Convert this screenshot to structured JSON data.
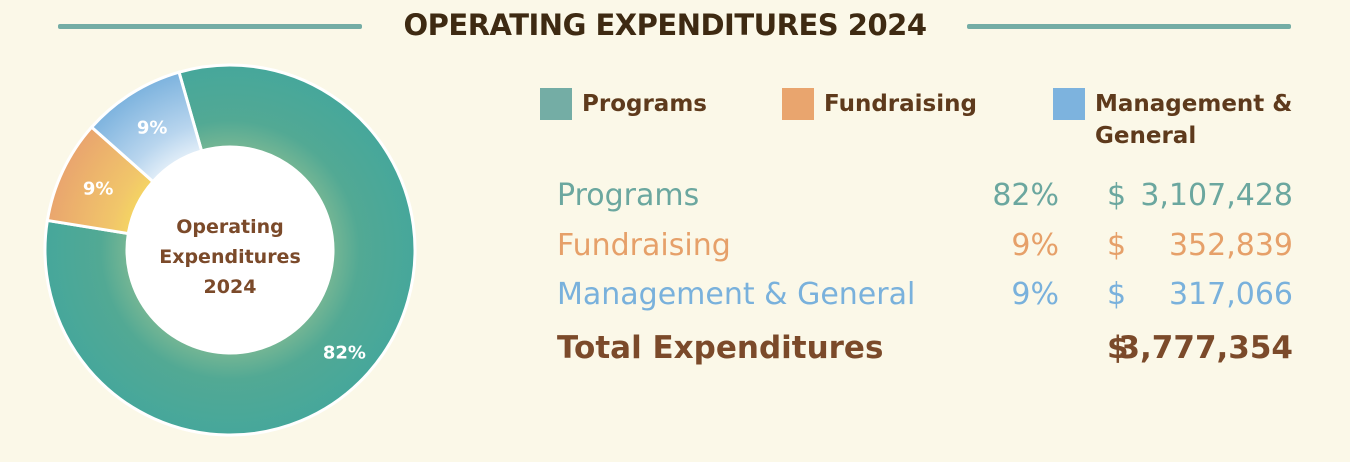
{
  "title": "OPERATING EXPENDITURES 2024",
  "center_label": [
    "Operating",
    "Expenditures",
    "2024"
  ],
  "legend": [
    {
      "label_lines": [
        "Programs"
      ],
      "color": "#74ADA5"
    },
    {
      "label_lines": [
        "Fundraising"
      ],
      "color": "#E9A56E"
    },
    {
      "label_lines": [
        "Management &",
        "General"
      ],
      "color": "#7DB3DE"
    }
  ],
  "table": {
    "rows": [
      {
        "name": "Programs",
        "pct": "82%",
        "currency": "$",
        "amount": "3,107,428",
        "color": "#6BA79F"
      },
      {
        "name": "Fundraising",
        "pct": "9%",
        "currency": "$",
        "amount": "352,839",
        "color": "#E6A069"
      },
      {
        "name": "Management & General",
        "pct": "9%",
        "currency": "$",
        "amount": "317,066",
        "color": "#79B1DC"
      }
    ],
    "total": {
      "name": "Total Expenditures",
      "currency": "$",
      "amount": "3,777,354"
    }
  },
  "chart_data": {
    "type": "pie",
    "title": "OPERATING EXPENDITURES 2024",
    "categories": [
      "Programs",
      "Fundraising",
      "Management & General"
    ],
    "values": [
      82,
      9,
      9
    ],
    "value_labels": [
      "82%",
      "9%",
      "9%"
    ],
    "amounts": [
      3107428,
      352839,
      317066
    ],
    "total": 3777354,
    "colors": [
      "#4BA89A",
      "#E9A56E",
      "#7DB3DE"
    ],
    "donut": true,
    "legend_position": "top-right"
  }
}
